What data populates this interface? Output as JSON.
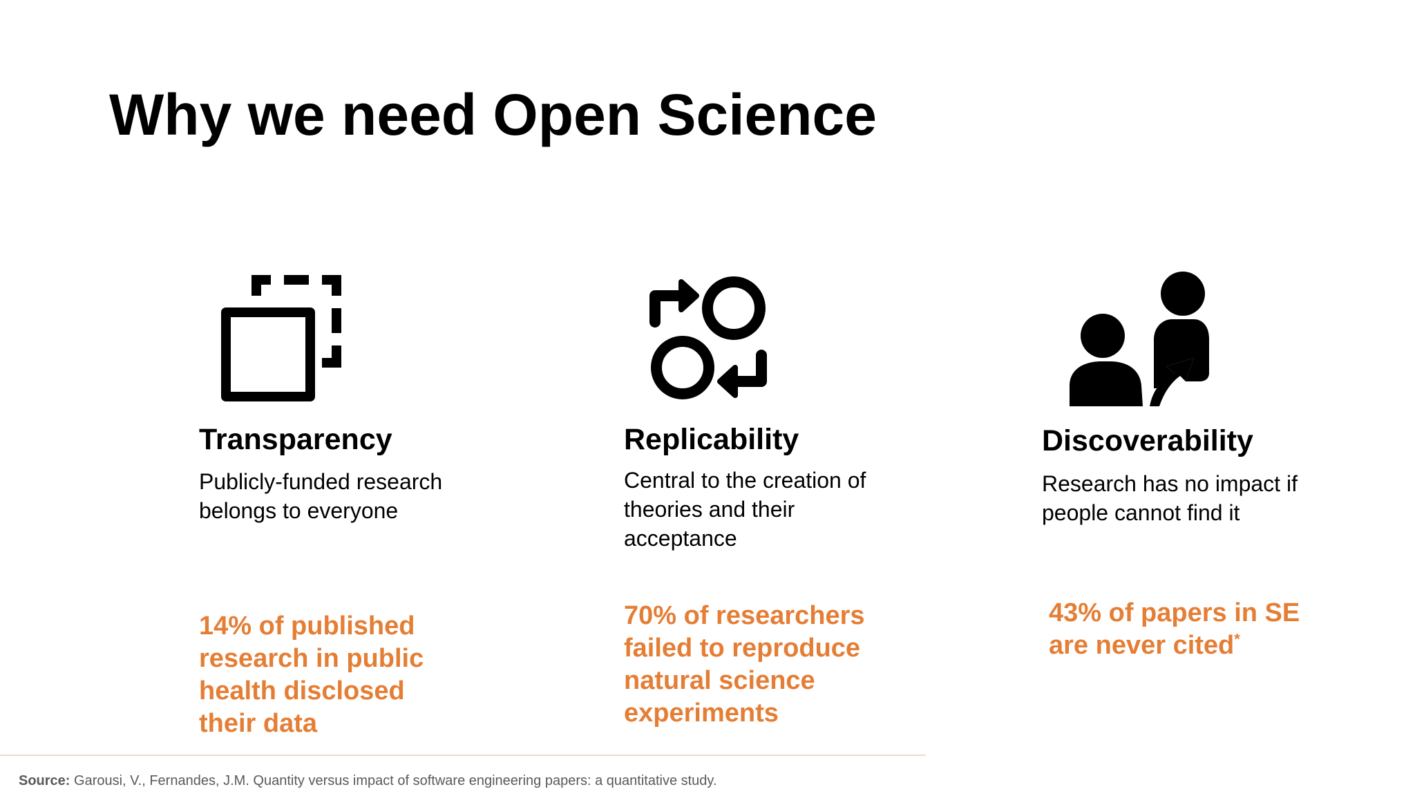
{
  "title": "Why we need Open Science",
  "columns": [
    {
      "icon": "dashed-square-copy-icon",
      "heading": "Transparency",
      "description": "Publicly-funded research belongs to everyone",
      "stat": "14% of published research in public health disclosed their data"
    },
    {
      "icon": "replicate-arrows-circles-icon",
      "heading": "Replicability",
      "description": "Central to the creation of theories and their acceptance",
      "stat": "70% of researchers failed to reproduce natural science experiments"
    },
    {
      "icon": "people-discover-icon",
      "heading": "Discoverability",
      "description": "Research has no impact if people cannot find it",
      "stat": "43% of papers in SE are never cited",
      "stat_footnote_mark": "*"
    }
  ],
  "source": {
    "label": "Source:",
    "text": " Garousi, V., Fernandes, J.M. Quantity versus impact of software engineering papers: a quantitative study."
  },
  "colors": {
    "accent": "#e57e35",
    "text": "#000000",
    "source_text": "#595959",
    "rule": "#ecdccb"
  }
}
